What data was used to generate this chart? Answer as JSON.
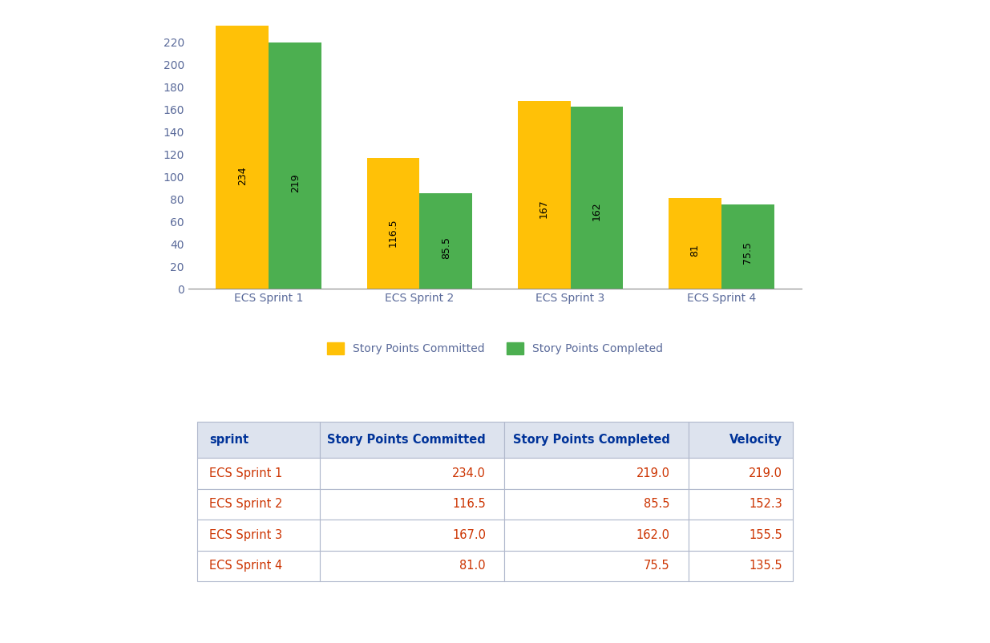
{
  "sprints": [
    "ECS Sprint 1",
    "ECS Sprint 2",
    "ECS Sprint 3",
    "ECS Sprint 4"
  ],
  "committed": [
    234,
    116.5,
    167,
    81
  ],
  "completed": [
    219,
    85.5,
    162,
    75.5
  ],
  "committed_labels": [
    "234",
    "116.5",
    "167",
    "81"
  ],
  "completed_labels": [
    "219",
    "85.5",
    "162",
    "75.5"
  ],
  "committed_color": "#FFC107",
  "completed_color": "#4CAF50",
  "bar_width": 0.35,
  "ylim": [
    0,
    240
  ],
  "yticks": [
    0,
    20,
    40,
    60,
    80,
    100,
    120,
    140,
    160,
    180,
    200,
    220
  ],
  "legend_committed": "Story Points Committed",
  "legend_completed": "Story Points Completed",
  "table_headers": [
    "sprint",
    "Story Points Committed",
    "Story Points Completed",
    "Velocity"
  ],
  "table_data": [
    [
      "ECS Sprint 1",
      "234.0",
      "219.0",
      "219.0"
    ],
    [
      "ECS Sprint 2",
      "116.5",
      "85.5",
      "152.3"
    ],
    [
      "ECS Sprint 3",
      "167.0",
      "162.0",
      "155.5"
    ],
    [
      "ECS Sprint 4",
      "81.0",
      "75.5",
      "135.5"
    ]
  ],
  "bg_color": "#ffffff",
  "chart_bg": "#ffffff",
  "tick_color": "#5a6a9a",
  "label_fontsize": 10,
  "bar_label_fontsize": 9,
  "legend_fontsize": 10,
  "table_header_color": "#dde3ee",
  "table_row_color": "#ffffff",
  "table_font_color": "#cc3300",
  "table_header_font_color": "#003399",
  "table_border_color": "#b0b8cc"
}
